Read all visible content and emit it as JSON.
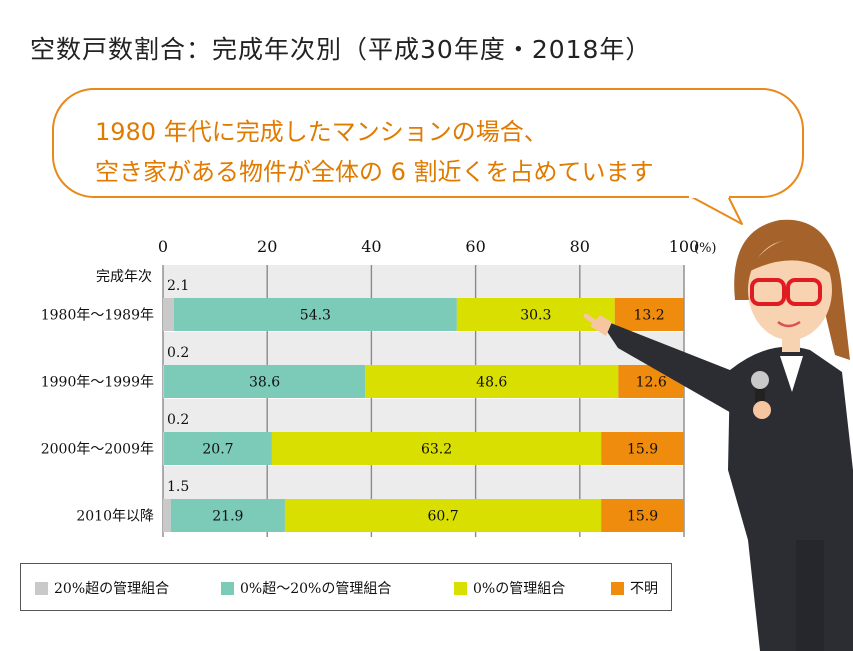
{
  "title": "空数戸数割合：完成年次別（平成30年度・2018年）",
  "callout": {
    "line1": "1980 年代に完成したマンションの場合、",
    "line2": "空き家がある物件が全体の 6 割近くを占めています"
  },
  "colors": {
    "gray": "#c9c9c9",
    "teal": "#7ccab8",
    "yellow": "#d9df00",
    "orange": "#ef8c0e",
    "bubble_border": "#e8891a",
    "callout_text": "#e07b00"
  },
  "chart_data": {
    "type": "bar",
    "orientation": "horizontal",
    "stacked": true,
    "category_header": "完成年次",
    "x_unit": "(%)",
    "xlim": [
      0,
      100
    ],
    "xticks": [
      "0",
      "20",
      "40",
      "60",
      "80",
      "100"
    ],
    "categories": [
      "1980年～1989年",
      "1990年～1999年",
      "2000年～2009年",
      "2010年以降"
    ],
    "series": [
      {
        "name": "20%超の管理組合",
        "values": [
          2.1,
          0.2,
          0.2,
          1.5
        ],
        "labels": [
          "2.1",
          "0.2",
          "0.2",
          "1.5"
        ]
      },
      {
        "name": "0%超～20%の管理組合",
        "values": [
          54.3,
          38.6,
          20.7,
          21.9
        ],
        "labels": [
          "54.3",
          "38.6",
          "20.7",
          "21.9"
        ]
      },
      {
        "name": "0%の管理組合",
        "values": [
          30.3,
          48.6,
          63.2,
          60.7
        ],
        "labels": [
          "30.3",
          "48.6",
          "63.2",
          "60.7"
        ]
      },
      {
        "name": "不明",
        "values": [
          13.2,
          12.6,
          15.9,
          15.9
        ],
        "labels": [
          "13.2",
          "12.6",
          "15.9",
          "15.9"
        ]
      }
    ]
  }
}
